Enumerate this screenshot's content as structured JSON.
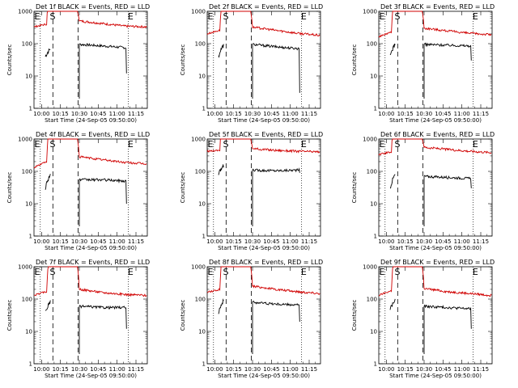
{
  "chart_data": [
    {
      "title": "Det 1f BLACK = Events, RED = LLD",
      "type": "line",
      "xlabel": "Start Time (24-Sep-05 09:50:00)",
      "ylabel": "Counts/sec",
      "yscale": "log",
      "ylim": [
        1,
        1000
      ],
      "x_ticks": [
        "10:00",
        "10:15",
        "10:30",
        "10:45",
        "11:00",
        "11:15"
      ],
      "y_ticks": [
        "1",
        "10",
        "100",
        "1000"
      ],
      "markers": [
        "E",
        "S",
        "E"
      ],
      "series": [
        {
          "color": "#000000",
          "values": {
            "pre": [
              40,
              70
            ],
            "post": [
              95,
              85,
              75,
              12
            ]
          }
        },
        {
          "color": "#d00000",
          "values": {
            "pre": [
              330,
              400
            ],
            "post": [
              500,
              420,
              350,
              330
            ]
          }
        }
      ]
    },
    {
      "title": "Det 2f BLACK = Events, RED = LLD",
      "type": "line",
      "xlabel": "Start Time (24-Sep-05 09:50:00)",
      "ylabel": "Counts/sec",
      "yscale": "log",
      "ylim": [
        1,
        1000
      ],
      "x_ticks": [
        "10:00",
        "10:15",
        "10:30",
        "10:45",
        "11:00",
        "11:15"
      ],
      "y_ticks": [
        "1",
        "10",
        "100",
        "1000"
      ],
      "markers": [
        "E",
        "S",
        "E"
      ],
      "series": [
        {
          "color": "#000000",
          "values": {
            "pre": [
              40,
              90
            ],
            "post": [
              95,
              80,
              70,
              3
            ]
          }
        },
        {
          "color": "#d00000",
          "values": {
            "pre": [
              200,
              260
            ],
            "post": [
              320,
              260,
              210,
              180
            ]
          }
        }
      ]
    },
    {
      "title": "Det 3f BLACK = Events, RED = LLD",
      "type": "line",
      "xlabel": "Start Time (24-Sep-05 09:50:00)",
      "ylabel": "Counts/sec",
      "yscale": "log",
      "ylim": [
        1,
        1000
      ],
      "x_ticks": [
        "10:00",
        "10:15",
        "10:30",
        "10:45",
        "11:00",
        "11:15"
      ],
      "y_ticks": [
        "1",
        "10",
        "100",
        "1000"
      ],
      "markers": [
        "E",
        "S",
        "E"
      ],
      "series": [
        {
          "color": "#000000",
          "values": {
            "pre": [
              40,
              100
            ],
            "post": [
              95,
              90,
              85,
              30
            ]
          }
        },
        {
          "color": "#d00000",
          "values": {
            "pre": [
              160,
              230
            ],
            "post": [
              300,
              250,
              210,
              190
            ]
          }
        }
      ]
    },
    {
      "title": "Det 4f BLACK = Events, RED = LLD",
      "type": "line",
      "xlabel": "Start Time (24-Sep-05 09:50:00)",
      "ylabel": "Counts/sec",
      "yscale": "log",
      "ylim": [
        1,
        1000
      ],
      "x_ticks": [
        "10:00",
        "10:15",
        "10:30",
        "10:45",
        "11:00",
        "11:15"
      ],
      "y_ticks": [
        "1",
        "10",
        "100",
        "1000"
      ],
      "markers": [
        "E",
        "S",
        "E"
      ],
      "series": [
        {
          "color": "#000000",
          "values": {
            "pre": [
              30,
              80
            ],
            "post": [
              55,
              55,
              50,
              10
            ]
          }
        },
        {
          "color": "#d00000",
          "values": {
            "pre": [
              130,
              200
            ],
            "post": [
              280,
              230,
              190,
              170
            ]
          }
        }
      ]
    },
    {
      "title": "Det 5f BLACK = Events, RED = LLD",
      "type": "line",
      "xlabel": "Start Time (24-Sep-05 09:50:00)",
      "ylabel": "Counts/sec",
      "yscale": "log",
      "ylim": [
        1,
        1000
      ],
      "x_ticks": [
        "10:00",
        "10:15",
        "10:30",
        "10:45",
        "11:00",
        "11:15"
      ],
      "y_ticks": [
        "1",
        "10",
        "100",
        "1000"
      ],
      "markers": [
        "E",
        "S",
        "E"
      ],
      "series": [
        {
          "color": "#000000",
          "values": {
            "pre": [
              80,
              150
            ],
            "post": [
              110,
              105,
              110,
              90
            ]
          }
        },
        {
          "color": "#d00000",
          "values": {
            "pre": [
              420,
              450
            ],
            "post": [
              500,
              450,
              420,
              400
            ]
          }
        }
      ]
    },
    {
      "title": "Det 6f BLACK = Events, RED = LLD",
      "type": "line",
      "xlabel": "Start Time (24-Sep-05 09:50:00)",
      "ylabel": "Counts/sec",
      "yscale": "log",
      "ylim": [
        1,
        1000
      ],
      "x_ticks": [
        "10:00",
        "10:15",
        "10:30",
        "10:45",
        "11:00",
        "11:15"
      ],
      "y_ticks": [
        "1",
        "10",
        "100",
        "1000"
      ],
      "markers": [
        "E",
        "S",
        "E"
      ],
      "series": [
        {
          "color": "#000000",
          "values": {
            "pre": [
              30,
              80
            ],
            "post": [
              70,
              65,
              60,
              30
            ]
          }
        },
        {
          "color": "#d00000",
          "values": {
            "pre": [
              330,
              400
            ],
            "post": [
              550,
              480,
              420,
              380
            ]
          }
        }
      ]
    },
    {
      "title": "Det 7f BLACK = Events, RED = LLD",
      "type": "line",
      "xlabel": "Start Time (24-Sep-05 09:50:00)",
      "ylabel": "Counts/sec",
      "yscale": "log",
      "ylim": [
        1,
        1000
      ],
      "x_ticks": [
        "10:00",
        "10:15",
        "10:30",
        "10:45",
        "11:00",
        "11:15"
      ],
      "y_ticks": [
        "1",
        "10",
        "100",
        "1000"
      ],
      "markers": [
        "E",
        "S",
        "E"
      ],
      "series": [
        {
          "color": "#000000",
          "values": {
            "pre": [
              40,
              80
            ],
            "post": [
              60,
              55,
              55,
              12
            ]
          }
        },
        {
          "color": "#d00000",
          "values": {
            "pre": [
              130,
              170
            ],
            "post": [
              200,
              160,
              140,
              130
            ]
          }
        }
      ]
    },
    {
      "title": "Det 8f BLACK = Events, RED = LLD",
      "type": "line",
      "xlabel": "Start Time (24-Sep-05 09:50:00)",
      "ylabel": "Counts/sec",
      "yscale": "log",
      "ylim": [
        1,
        1000
      ],
      "x_ticks": [
        "10:00",
        "10:15",
        "10:30",
        "10:45",
        "11:00",
        "11:15"
      ],
      "y_ticks": [
        "1",
        "10",
        "100",
        "1000"
      ],
      "markers": [
        "E",
        "S",
        "E"
      ],
      "series": [
        {
          "color": "#000000",
          "values": {
            "pre": [
              40,
              90
            ],
            "post": [
              80,
              70,
              65,
              20
            ]
          }
        },
        {
          "color": "#d00000",
          "values": {
            "pre": [
              160,
              200
            ],
            "post": [
              250,
              200,
              170,
              150
            ]
          }
        }
      ]
    },
    {
      "title": "Det 9f BLACK = Events, RED = LLD",
      "type": "line",
      "xlabel": "Start Time (24-Sep-05 09:50:00)",
      "ylabel": "Counts/sec",
      "yscale": "log",
      "ylim": [
        1,
        1000
      ],
      "x_ticks": [
        "10:00",
        "10:15",
        "10:30",
        "10:45",
        "11:00",
        "11:15"
      ],
      "y_ticks": [
        "1",
        "10",
        "100",
        "1000"
      ],
      "markers": [
        "E",
        "S",
        "E"
      ],
      "series": [
        {
          "color": "#000000",
          "values": {
            "pre": [
              50,
              90
            ],
            "post": [
              60,
              55,
              50,
              12
            ]
          }
        },
        {
          "color": "#d00000",
          "values": {
            "pre": [
              130,
              180
            ],
            "post": [
              210,
              170,
              150,
              130
            ]
          }
        }
      ]
    }
  ]
}
